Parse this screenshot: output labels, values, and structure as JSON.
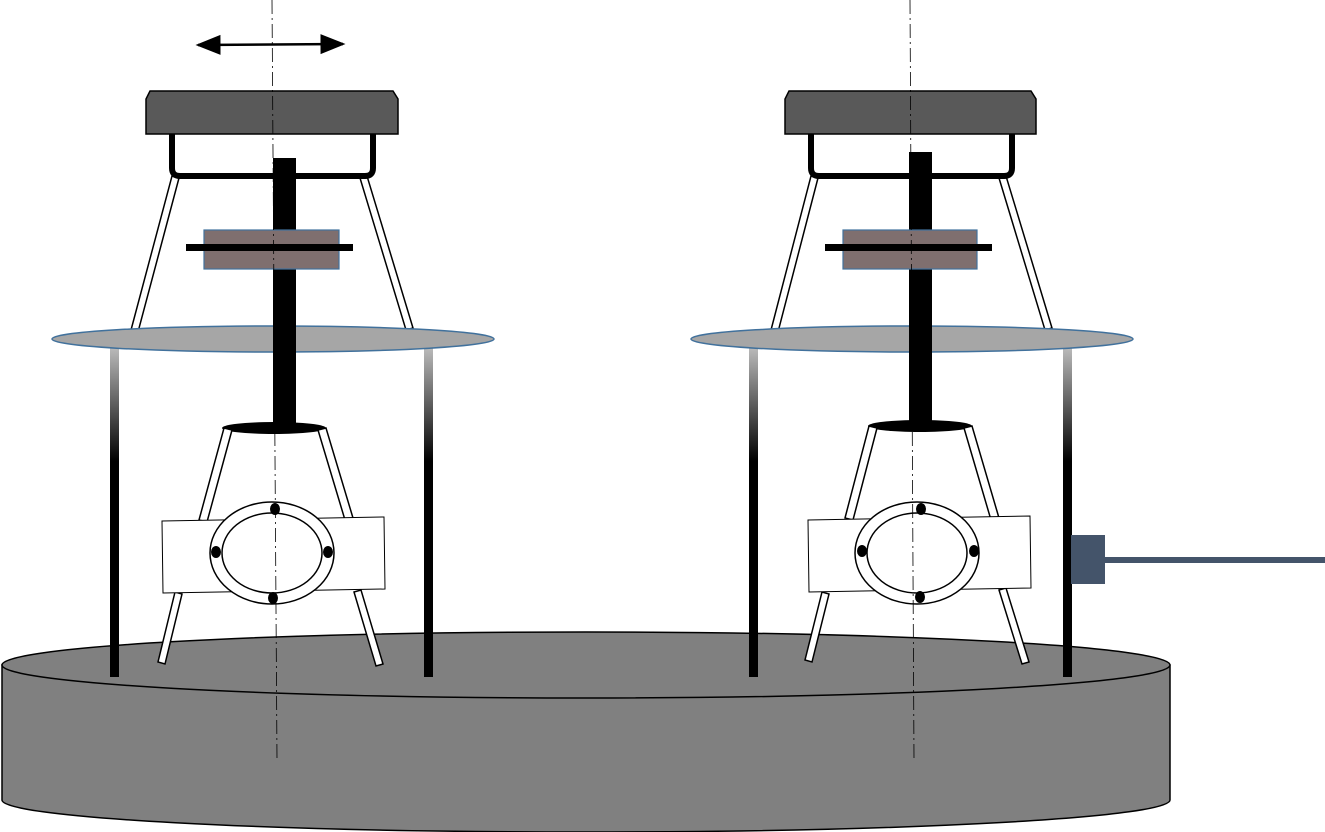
{
  "diagram": {
    "units": [
      {
        "id": "left-unit",
        "has_motion_arrow": true,
        "has_side_connector": false
      },
      {
        "id": "right-unit",
        "has_motion_arrow": false,
        "has_side_connector": true
      }
    ],
    "colors": {
      "base_fill": "#808080",
      "top_cap_fill": "#595959",
      "disc_fill": "#a6a6a6",
      "disc_stroke": "#41719c",
      "block_fill": "#7f6f6f",
      "block_stroke": "#41719c",
      "connector_fill": "#44546a",
      "line_color": "#000000"
    }
  }
}
